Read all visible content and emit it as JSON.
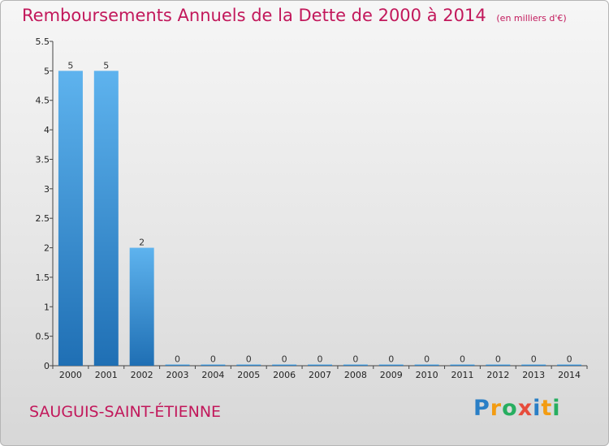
{
  "chart_data": {
    "type": "bar",
    "title": "Remboursements Annuels de la Dette de 2000 à 2014",
    "subtitle": "(en milliers d'€)",
    "categories": [
      "2000",
      "2001",
      "2002",
      "2003",
      "2004",
      "2005",
      "2006",
      "2007",
      "2008",
      "2009",
      "2010",
      "2011",
      "2012",
      "2013",
      "2014"
    ],
    "values": [
      5,
      5,
      2,
      0,
      0,
      0,
      0,
      0,
      0,
      0,
      0,
      0,
      0,
      0,
      0
    ],
    "ylim": [
      0,
      5.5
    ],
    "yticks": [
      "0",
      "0.5",
      "1",
      "1.5",
      "2",
      "2.5",
      "3",
      "3.5",
      "4",
      "4.5",
      "5",
      "5.5"
    ],
    "xlabel": "",
    "ylabel": "",
    "grid": false,
    "bar_color": "#2f86cc"
  },
  "footer": {
    "commune": "SAUGUIS-SAINT-ÉTIENNE",
    "logo_text": "Proxiti"
  }
}
